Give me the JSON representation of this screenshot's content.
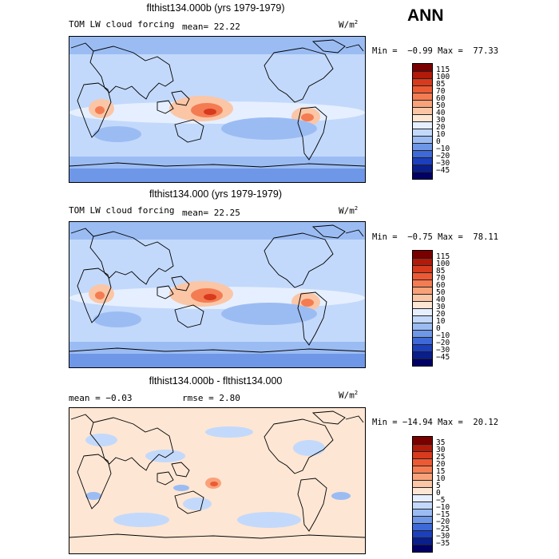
{
  "season": "ANN",
  "units_base": "W/m",
  "units_exp": "2",
  "panels": [
    {
      "title": "flthist134.000b (yrs 1979-1979)",
      "sub_left": "TOM LW cloud forcing",
      "sub_mid": "mean=  22.22",
      "minmax": "Min =  −0.99 Max =  77.33",
      "colorbar": [
        "115",
        "100",
        "85",
        "70",
        "60",
        "50",
        "40",
        "30",
        "20",
        "10",
        "0",
        "−10",
        "−20",
        "−30",
        "−45"
      ],
      "palette": [
        "#7a0000",
        "#b21a0a",
        "#d83a1e",
        "#ec5a34",
        "#f47c52",
        "#f9a27a",
        "#fbc6a6",
        "#fde6d4",
        "#e6efff",
        "#c3d9fb",
        "#9bbcf3",
        "#6f97e8",
        "#3e69d8",
        "#1b3fbd",
        "#0a1e8c",
        "#000066"
      ],
      "map_style": "base"
    },
    {
      "title": "flthist134.000 (yrs 1979-1979)",
      "sub_left": "TOM LW cloud forcing",
      "sub_mid": "mean=  22.25",
      "minmax": "Min =  −0.75 Max =  78.11",
      "colorbar": [
        "115",
        "100",
        "85",
        "70",
        "60",
        "50",
        "40",
        "30",
        "20",
        "10",
        "0",
        "−10",
        "−20",
        "−30",
        "−45"
      ],
      "palette": [
        "#7a0000",
        "#b21a0a",
        "#d83a1e",
        "#ec5a34",
        "#f47c52",
        "#f9a27a",
        "#fbc6a6",
        "#fde6d4",
        "#e6efff",
        "#c3d9fb",
        "#9bbcf3",
        "#6f97e8",
        "#3e69d8",
        "#1b3fbd",
        "#0a1e8c",
        "#000066"
      ],
      "map_style": "base"
    },
    {
      "title": "flthist134.000b - flthist134.000",
      "sub_left": "mean =  −0.03",
      "sub_mid": "rmse =   2.80",
      "minmax": "Min = −14.94 Max =  20.12",
      "colorbar": [
        "35",
        "30",
        "25",
        "20",
        "15",
        "10",
        "5",
        "0",
        "−5",
        "−10",
        "−15",
        "−20",
        "−25",
        "−30",
        "−35"
      ],
      "palette": [
        "#7a0000",
        "#b21a0a",
        "#d83a1e",
        "#ec5a34",
        "#f47c52",
        "#f9a27a",
        "#fbc6a6",
        "#fde6d4",
        "#e6efff",
        "#c3d9fb",
        "#9bbcf3",
        "#6f97e8",
        "#3e69d8",
        "#1b3fbd",
        "#0a1e8c",
        "#000066"
      ],
      "map_style": "diff"
    }
  ]
}
